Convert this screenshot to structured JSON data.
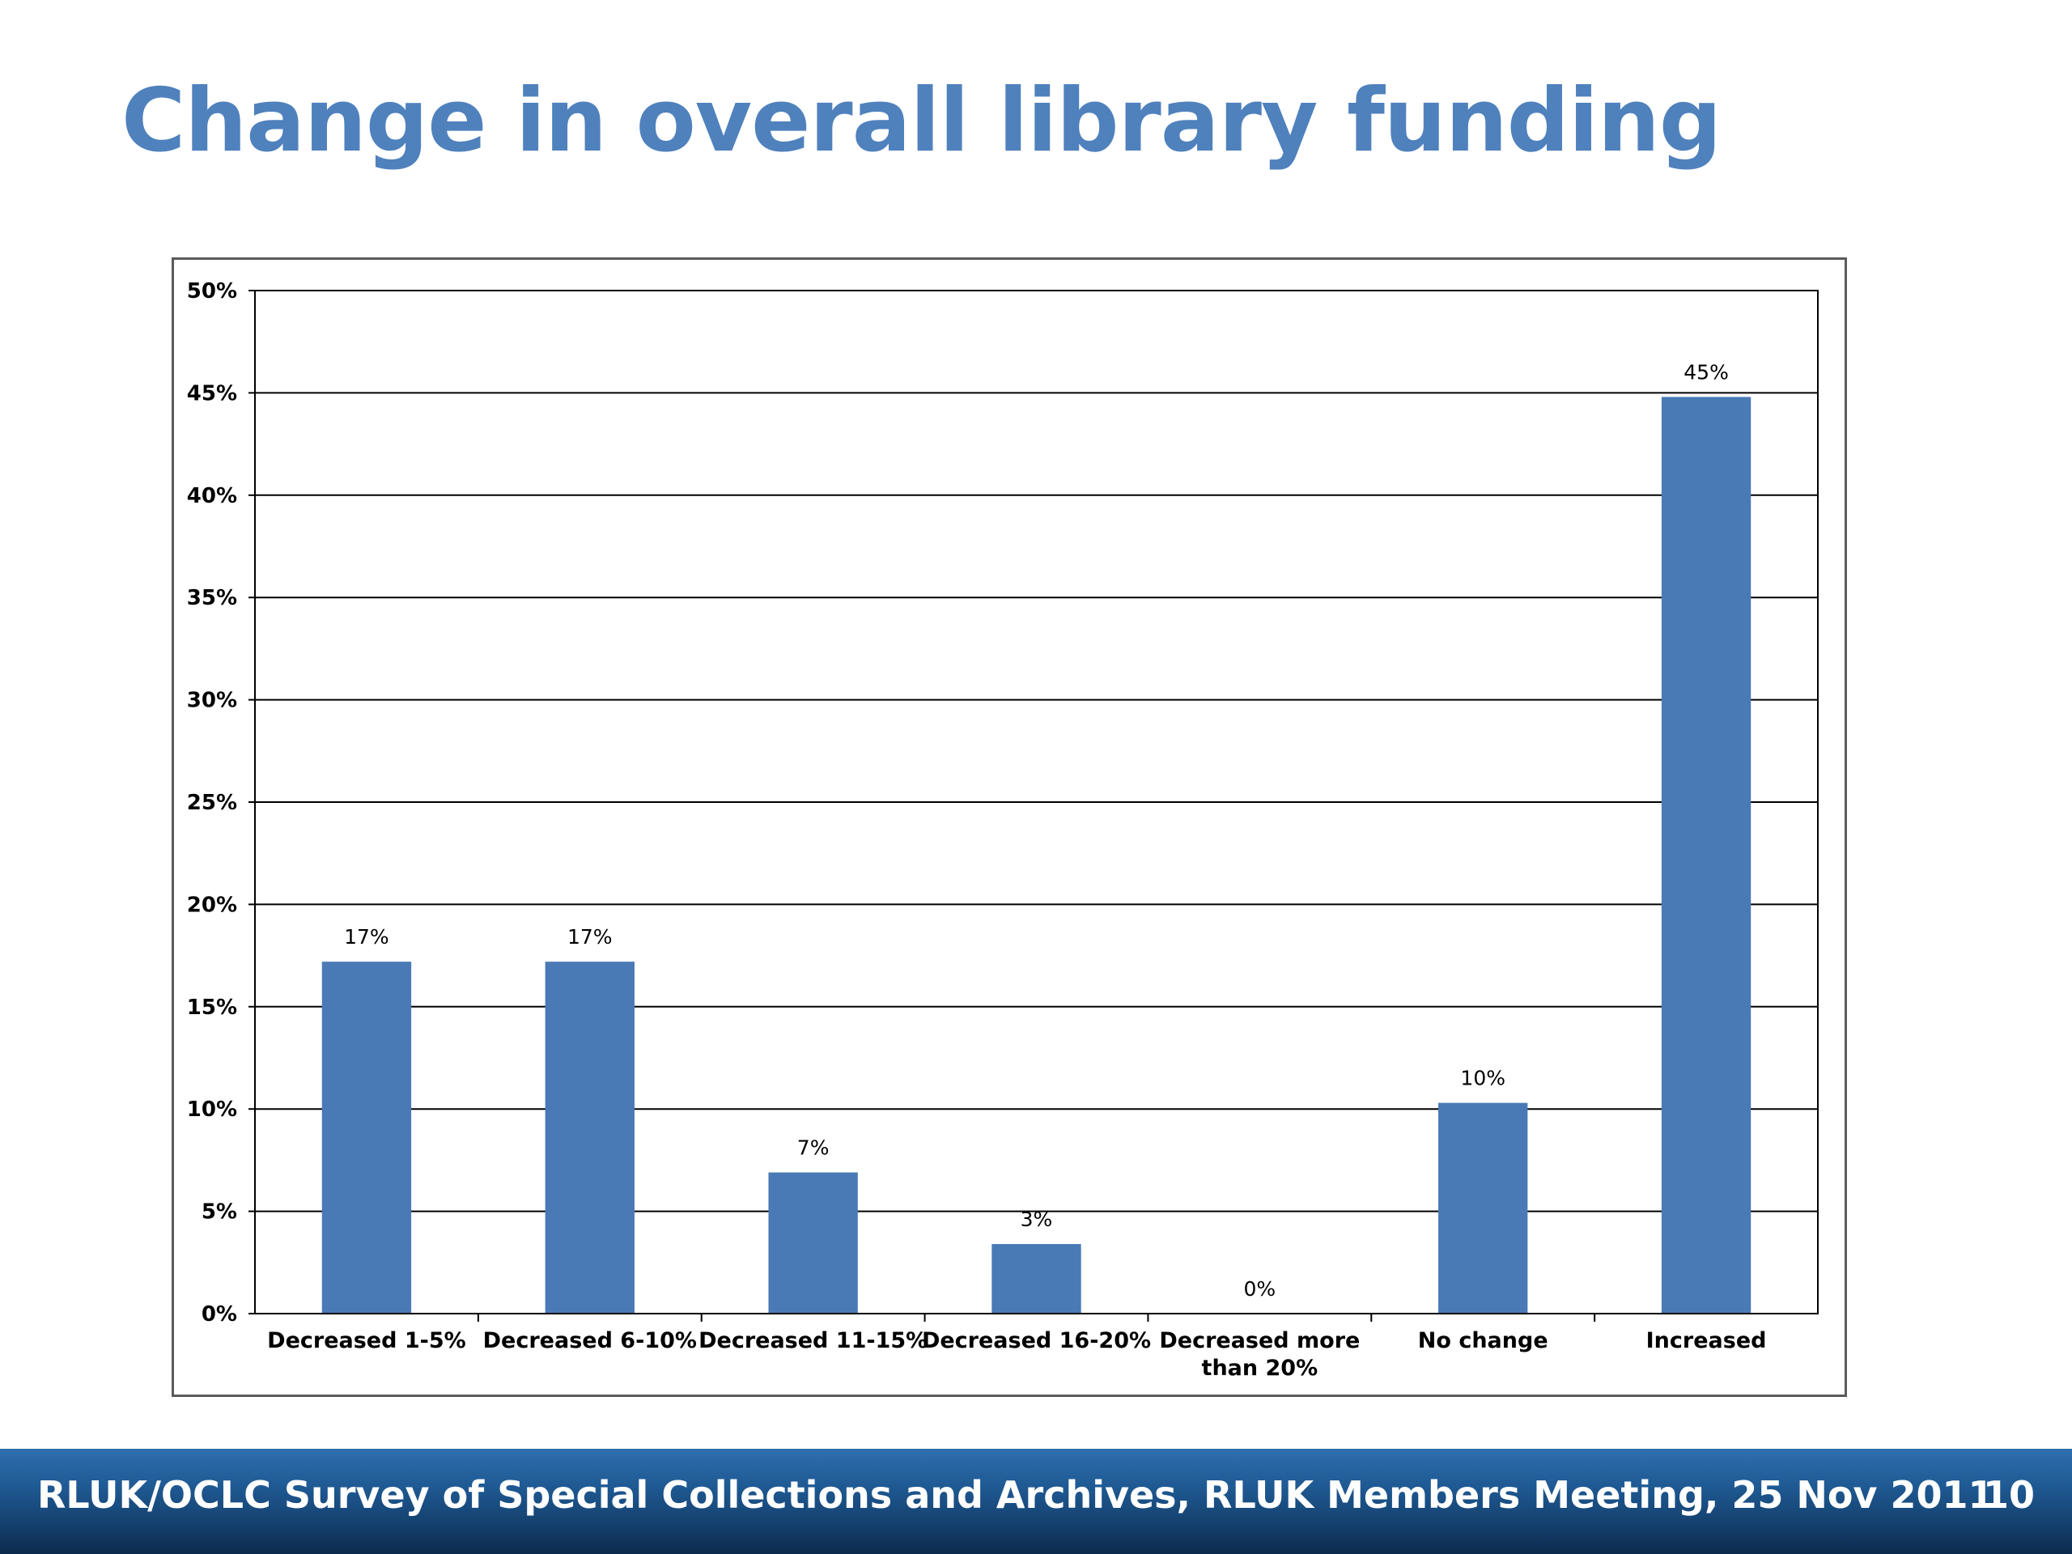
{
  "slide": {
    "title": "Change in overall library funding",
    "footer": "RLUK/OCLC Survey of Special Collections and Archives, RLUK Members Meeting, 25 Nov 2011",
    "page_number": "10"
  },
  "chart_data": {
    "type": "bar",
    "categories": [
      "Decreased 1-5%",
      "Decreased 6-10%",
      "Decreased 11-15%",
      "Decreased 16-20%",
      "Decreased more than 20%",
      "No change",
      "Increased"
    ],
    "values": [
      17.2,
      17.2,
      6.9,
      3.4,
      0,
      10.3,
      44.8
    ],
    "data_labels": [
      "17%",
      "17%",
      "7%",
      "3%",
      "0%",
      "10%",
      "45%"
    ],
    "y_ticks": [
      "0%",
      "5%",
      "10%",
      "15%",
      "20%",
      "25%",
      "30%",
      "35%",
      "40%",
      "45%",
      "50%"
    ],
    "ylim": [
      0,
      50
    ],
    "title": "",
    "xlabel": "",
    "ylabel": "",
    "grid": true,
    "legend": "none",
    "bar_color": "#4a7ab5"
  }
}
